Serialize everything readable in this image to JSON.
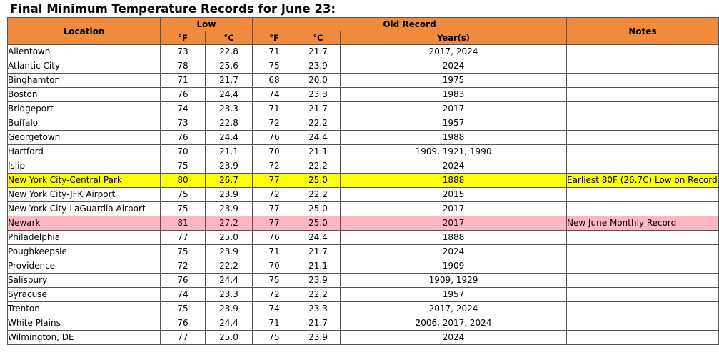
{
  "title": "Final Minimum Temperature Records for June 23:",
  "header": {
    "location": "Location",
    "low": "Low",
    "old_record": "Old Record",
    "notes": "Notes",
    "f": "°F",
    "c": "°C",
    "years": "Year(s)"
  },
  "highlight_colors": {
    "header": "#f08a3c",
    "yellow": "#ffff00",
    "pink": "#ffb6c1"
  },
  "rows": [
    {
      "location": "Allentown",
      "low_f": "73",
      "low_c": "22.8",
      "old_f": "71",
      "old_c": "21.7",
      "years": "2017, 2024",
      "notes": "",
      "highlight": ""
    },
    {
      "location": "Atlantic City",
      "low_f": "78",
      "low_c": "25.6",
      "old_f": "75",
      "old_c": "23.9",
      "years": "2024",
      "notes": "",
      "highlight": ""
    },
    {
      "location": "Binghamton",
      "low_f": "71",
      "low_c": "21.7",
      "old_f": "68",
      "old_c": "20.0",
      "years": "1975",
      "notes": "",
      "highlight": ""
    },
    {
      "location": "Boston",
      "low_f": "76",
      "low_c": "24.4",
      "old_f": "74",
      "old_c": "23.3",
      "years": "1983",
      "notes": "",
      "highlight": ""
    },
    {
      "location": "Bridgeport",
      "low_f": "74",
      "low_c": "23.3",
      "old_f": "71",
      "old_c": "21.7",
      "years": "2017",
      "notes": "",
      "highlight": ""
    },
    {
      "location": "Buffalo",
      "low_f": "73",
      "low_c": "22.8",
      "old_f": "72",
      "old_c": "22.2",
      "years": "1957",
      "notes": "",
      "highlight": ""
    },
    {
      "location": "Georgetown",
      "low_f": "76",
      "low_c": "24.4",
      "old_f": "76",
      "old_c": "24.4",
      "years": "1988",
      "notes": "",
      "highlight": ""
    },
    {
      "location": "Hartford",
      "low_f": "70",
      "low_c": "21.1",
      "old_f": "70",
      "old_c": "21.1",
      "years": "1909, 1921, 1990",
      "notes": "",
      "highlight": ""
    },
    {
      "location": "Islip",
      "low_f": "75",
      "low_c": "23.9",
      "old_f": "72",
      "old_c": "22.2",
      "years": "2024",
      "notes": "",
      "highlight": ""
    },
    {
      "location": "New York City-Central Park",
      "low_f": "80",
      "low_c": "26.7",
      "old_f": "77",
      "old_c": "25.0",
      "years": "1888",
      "notes": "Earliest 80F (26.7C) Low on Record",
      "highlight": "yellow"
    },
    {
      "location": "New York City-JFK Airport",
      "low_f": "75",
      "low_c": "23.9",
      "old_f": "72",
      "old_c": "22.2",
      "years": "2015",
      "notes": "",
      "highlight": ""
    },
    {
      "location": "New York City-LaGuardia Airport",
      "low_f": "75",
      "low_c": "23.9",
      "old_f": "77",
      "old_c": "25.0",
      "years": "2017",
      "notes": "",
      "highlight": ""
    },
    {
      "location": "Newark",
      "low_f": "81",
      "low_c": "27.2",
      "old_f": "77",
      "old_c": "25.0",
      "years": "2017",
      "notes": "New June Monthly Record",
      "highlight": "pink"
    },
    {
      "location": "Philadelphia",
      "low_f": "77",
      "low_c": "25.0",
      "old_f": "76",
      "old_c": "24.4",
      "years": "1888",
      "notes": "",
      "highlight": ""
    },
    {
      "location": "Poughkeepsie",
      "low_f": "75",
      "low_c": "23.9",
      "old_f": "71",
      "old_c": "21.7",
      "years": "2024",
      "notes": "",
      "highlight": ""
    },
    {
      "location": "Providence",
      "low_f": "72",
      "low_c": "22.2",
      "old_f": "70",
      "old_c": "21.1",
      "years": "1909",
      "notes": "",
      "highlight": ""
    },
    {
      "location": "Salisbury",
      "low_f": "76",
      "low_c": "24.4",
      "old_f": "75",
      "old_c": "23.9",
      "years": "1909, 1929",
      "notes": "",
      "highlight": ""
    },
    {
      "location": "Syracuse",
      "low_f": "74",
      "low_c": "23.3",
      "old_f": "72",
      "old_c": "22.2",
      "years": "1957",
      "notes": "",
      "highlight": ""
    },
    {
      "location": "Trenton",
      "low_f": "75",
      "low_c": "23.9",
      "old_f": "74",
      "old_c": "23.3",
      "years": "2017, 2024",
      "notes": "",
      "highlight": ""
    },
    {
      "location": "White Plains",
      "low_f": "76",
      "low_c": "24.4",
      "old_f": "71",
      "old_c": "21.7",
      "years": "2006, 2017, 2024",
      "notes": "",
      "highlight": ""
    },
    {
      "location": "Wilmington, DE",
      "low_f": "77",
      "low_c": "25.0",
      "old_f": "75",
      "old_c": "23.9",
      "years": "2024",
      "notes": "",
      "highlight": ""
    }
  ]
}
